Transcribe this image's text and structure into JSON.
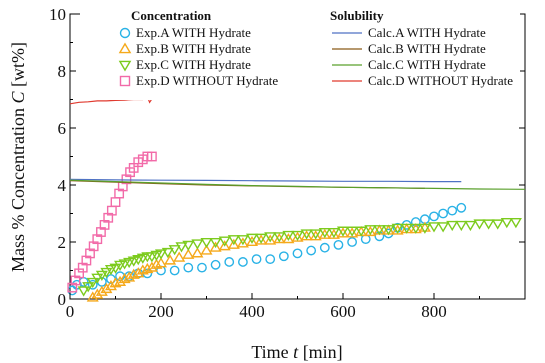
{
  "chart_data": {
    "type": "scatter",
    "xlabel": "Time t [min]",
    "xlabel_main": "Time ",
    "xlabel_var": "t",
    "xlabel_unit": " [min]",
    "ylabel": "Mass % Concentration C [wt%]",
    "ylabel_main": "Mass % Concentration ",
    "ylabel_var": "C",
    "ylabel_unit": " [wt%]",
    "xlim": [
      0,
      1000
    ],
    "ylim": [
      0,
      10
    ],
    "xticks": [
      0,
      200,
      400,
      600,
      800
    ],
    "yticks": [
      0,
      2,
      4,
      6,
      8,
      10
    ],
    "grid": false,
    "legend_placement": "top",
    "legend_groups": [
      "Concentration",
      "Solubility"
    ],
    "series": [
      {
        "name": "Exp.A WITH Hydrate",
        "kind": "marker",
        "marker": "circle",
        "color": "#29b2e6",
        "x": [
          5,
          15,
          30,
          50,
          70,
          90,
          110,
          130,
          150,
          170,
          200,
          230,
          260,
          290,
          320,
          350,
          380,
          410,
          440,
          470,
          500,
          530,
          560,
          590,
          620,
          650,
          680,
          700,
          720,
          740,
          760,
          780,
          800,
          820,
          840,
          860
        ],
        "y": [
          0.3,
          0.5,
          0.6,
          0.5,
          0.6,
          0.7,
          0.8,
          0.8,
          0.9,
          0.9,
          1.0,
          1.0,
          1.1,
          1.1,
          1.2,
          1.3,
          1.3,
          1.4,
          1.4,
          1.5,
          1.6,
          1.7,
          1.8,
          1.9,
          2.0,
          2.1,
          2.2,
          2.3,
          2.5,
          2.6,
          2.7,
          2.8,
          2.9,
          3.0,
          3.1,
          3.2
        ]
      },
      {
        "name": "Exp.B WITH Hydrate",
        "kind": "marker",
        "marker": "triangle-up",
        "color": "#f5a91b",
        "x": [
          50,
          60,
          70,
          80,
          90,
          100,
          110,
          120,
          130,
          140,
          150,
          160,
          170,
          180,
          190,
          200,
          220,
          240,
          260,
          280,
          300,
          320,
          340,
          360,
          380,
          400,
          420,
          440,
          460,
          480,
          500,
          520,
          540,
          560,
          580,
          600,
          620,
          640,
          660,
          680,
          700,
          720,
          740,
          760,
          780
        ],
        "y": [
          0.05,
          0.15,
          0.25,
          0.35,
          0.45,
          0.55,
          0.6,
          0.7,
          0.75,
          0.85,
          0.9,
          1.0,
          1.05,
          1.1,
          1.2,
          1.25,
          1.35,
          1.45,
          1.55,
          1.6,
          1.7,
          1.8,
          1.85,
          1.9,
          1.95,
          2.0,
          2.05,
          2.05,
          2.1,
          2.1,
          2.15,
          2.2,
          2.2,
          2.25,
          2.25,
          2.3,
          2.3,
          2.35,
          2.35,
          2.4,
          2.4,
          2.4,
          2.45,
          2.45,
          2.5
        ]
      },
      {
        "name": "Exp.C WITH Hydrate",
        "kind": "marker",
        "marker": "triangle-down",
        "color": "#7ccb1d",
        "x": [
          30,
          40,
          50,
          60,
          70,
          80,
          90,
          100,
          110,
          120,
          130,
          140,
          150,
          160,
          170,
          180,
          190,
          200,
          215,
          230,
          245,
          260,
          280,
          300,
          320,
          340,
          360,
          380,
          400,
          420,
          440,
          460,
          480,
          500,
          520,
          540,
          560,
          580,
          600,
          620,
          640,
          660,
          680,
          700,
          720,
          740,
          760,
          780,
          800,
          820,
          840,
          860,
          880,
          900,
          920,
          940,
          960,
          980
        ],
        "y": [
          0.3,
          0.45,
          0.6,
          0.75,
          0.85,
          0.95,
          1.05,
          1.1,
          1.2,
          1.25,
          1.3,
          1.35,
          1.4,
          1.45,
          1.5,
          1.5,
          1.55,
          1.6,
          1.65,
          1.75,
          1.85,
          1.9,
          1.95,
          2.0,
          2.0,
          2.05,
          2.1,
          2.1,
          2.15,
          2.15,
          2.2,
          2.2,
          2.25,
          2.25,
          2.3,
          2.3,
          2.35,
          2.35,
          2.4,
          2.4,
          2.4,
          2.45,
          2.45,
          2.45,
          2.5,
          2.5,
          2.5,
          2.5,
          2.55,
          2.55,
          2.6,
          2.6,
          2.6,
          2.65,
          2.65,
          2.65,
          2.7,
          2.7
        ]
      },
      {
        "name": "Exp.D WITHOUT Hydrate",
        "kind": "marker",
        "marker": "square",
        "color": "#f26aa8",
        "x": [
          5,
          12,
          20,
          28,
          36,
          44,
          52,
          60,
          68,
          76,
          84,
          92,
          100,
          108,
          116,
          124,
          132,
          140,
          150,
          160,
          170,
          180
        ],
        "y": [
          0.4,
          0.65,
          0.9,
          1.1,
          1.35,
          1.6,
          1.85,
          2.1,
          2.35,
          2.6,
          2.85,
          3.1,
          3.4,
          3.7,
          3.95,
          4.2,
          4.45,
          4.6,
          4.8,
          4.9,
          5.0,
          5.0
        ]
      },
      {
        "name": "Calc.A WITH Hydrate",
        "kind": "line",
        "color": "#4f72c4",
        "x": [
          0,
          100,
          200,
          300,
          400,
          500,
          600,
          700,
          800,
          860
        ],
        "y": [
          4.2,
          4.18,
          4.17,
          4.16,
          4.15,
          4.14,
          4.13,
          4.13,
          4.12,
          4.12
        ]
      },
      {
        "name": "Calc.B WITH Hydrate",
        "kind": "line",
        "color": "#8a5a17",
        "x": [
          0,
          100,
          200,
          300,
          400,
          500,
          600,
          700,
          780
        ],
        "y": [
          4.15,
          4.1,
          4.05,
          4.0,
          3.97,
          3.94,
          3.92,
          3.9,
          3.88
        ]
      },
      {
        "name": "Calc.C WITH Hydrate",
        "kind": "line",
        "color": "#5aa02c",
        "x": [
          0,
          100,
          200,
          300,
          400,
          500,
          600,
          700,
          800,
          900,
          1000
        ],
        "y": [
          4.17,
          4.12,
          4.07,
          4.02,
          3.98,
          3.95,
          3.92,
          3.9,
          3.88,
          3.86,
          3.85
        ]
      },
      {
        "name": "Calc.D WITHOUT Hydrate",
        "kind": "line",
        "color": "#e03a2f",
        "x": [
          0,
          20,
          40,
          60,
          80,
          100,
          120,
          140,
          160,
          170,
          175,
          180
        ],
        "y": [
          6.85,
          6.9,
          6.92,
          6.95,
          6.95,
          6.97,
          6.98,
          7.0,
          7.0,
          7.1,
          6.9,
          7.02
        ]
      }
    ]
  }
}
